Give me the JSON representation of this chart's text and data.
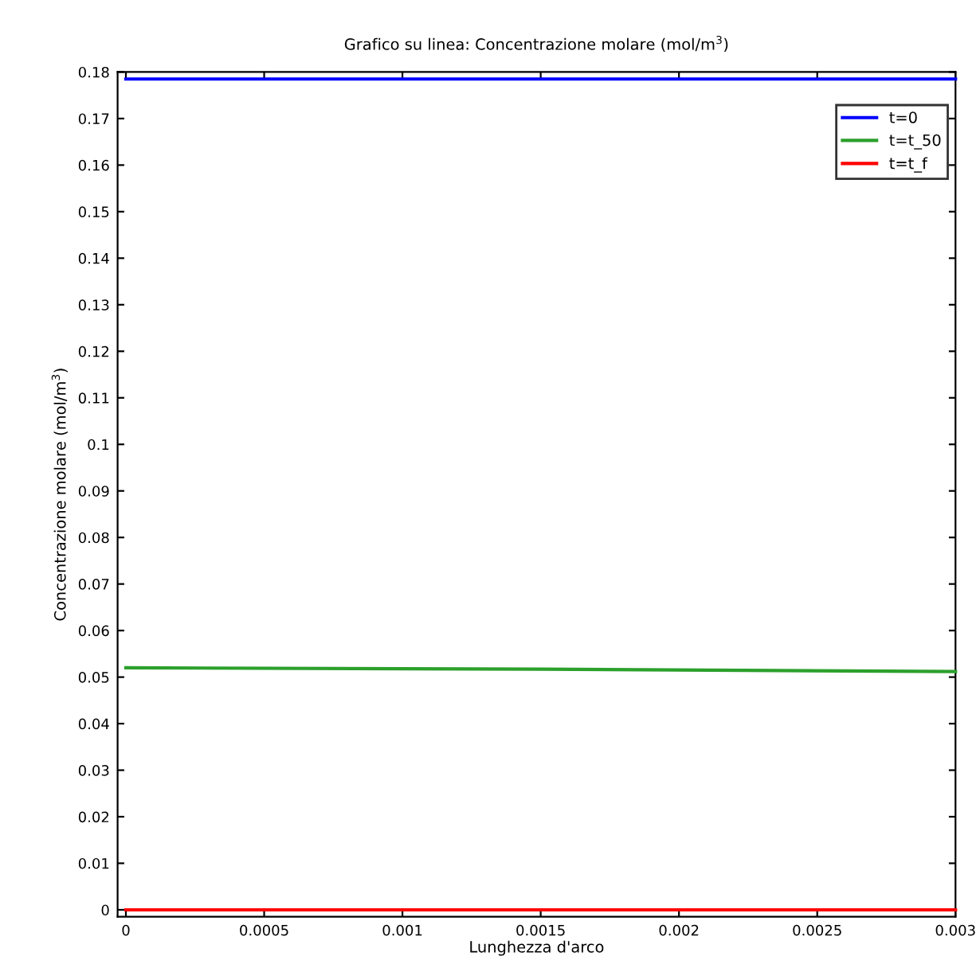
{
  "chart_data": {
    "type": "line",
    "title": "Grafico su linea: Concentrazione molare (mol/m$^{3}$)",
    "xlabel": "Lunghezza d'arco",
    "ylabel": "Concentrazione molare (mol/m$^{3}$)",
    "x": [
      0,
      0.0015,
      0.003
    ],
    "series": [
      {
        "name": "t=0",
        "color": "#0000ff",
        "values": [
          0.1785,
          0.1785,
          0.1785
        ]
      },
      {
        "name": "t=t_50",
        "color": "#2ca02c",
        "values": [
          0.052,
          0.0517,
          0.0512
        ]
      },
      {
        "name": "t=t_f",
        "color": "#ff0000",
        "values": [
          0,
          0,
          0
        ]
      }
    ],
    "xlim": [
      -3e-05,
      0.003
    ],
    "ylim": [
      -0.0015,
      0.18
    ],
    "xticks": [
      0,
      0.0005,
      0.001,
      0.0015,
      0.002,
      0.0025,
      0.003
    ],
    "yticks": [
      0,
      0.01,
      0.02,
      0.03,
      0.04,
      0.05,
      0.06,
      0.07,
      0.08,
      0.09,
      0.1,
      0.11,
      0.12,
      0.13,
      0.14,
      0.15,
      0.16,
      0.17,
      0.18
    ],
    "grid": false,
    "legend": "top right",
    "marker": "none",
    "line_style": "solid"
  }
}
